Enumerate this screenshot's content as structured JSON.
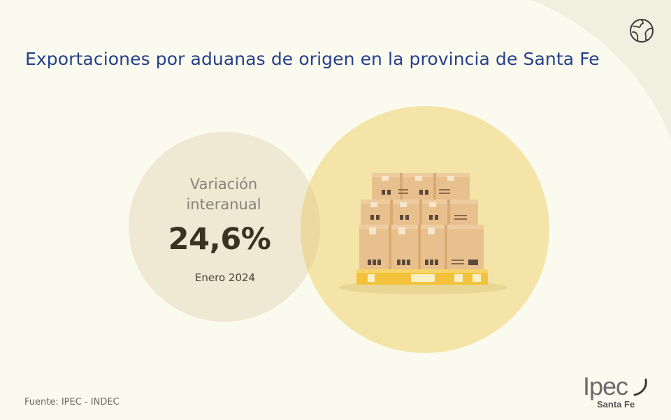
{
  "title": "Exportaciones por aduanas de origen en la provincia de Santa Fe",
  "stat": {
    "label_line1": "Variación",
    "label_line2": "interanual",
    "value": "24,6%",
    "period": "Enero 2024"
  },
  "source": "Fuente: IPEC - INDEC",
  "logo": {
    "word": "Ipec",
    "subtitle": "Santa Fe"
  },
  "icons": {
    "top_right": "globe-icon",
    "illustration": "pallet-boxes-illustration"
  },
  "colors": {
    "background": "#fbfaee",
    "title": "#24418a",
    "left_circle": "#efe8d3",
    "right_circle": "#f4e4a8",
    "box": "#e8c08e",
    "pallet": "#f2c23a"
  }
}
